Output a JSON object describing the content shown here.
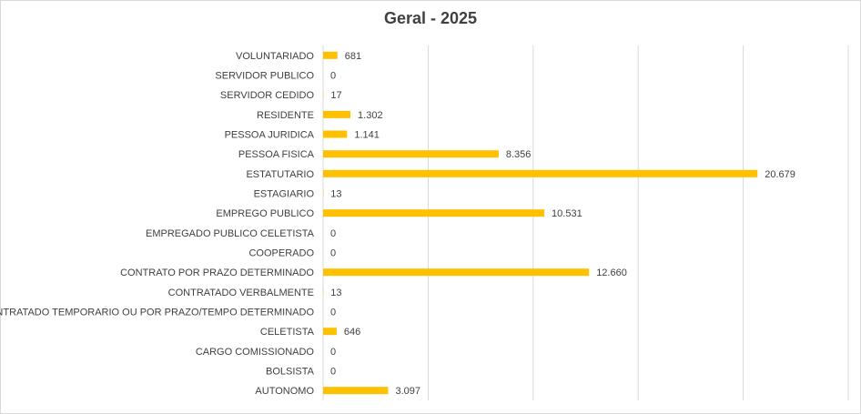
{
  "chart_data": {
    "type": "bar",
    "orientation": "horizontal",
    "title": "Geral - 2025",
    "xlabel": "",
    "ylabel": "",
    "xlim": [
      0,
      25000
    ],
    "grid": true,
    "legend": "none",
    "bar_color": "#FFC000",
    "categories": [
      "VOLUNTARIADO",
      "SERVIDOR PUBLICO",
      "SERVIDOR CEDIDO",
      "RESIDENTE",
      "PESSOA JURIDICA",
      "PESSOA FISICA",
      "ESTATUTARIO",
      "ESTAGIARIO",
      "EMPREGO PUBLICO",
      "EMPREGADO PUBLICO CELETISTA",
      "COOPERADO",
      "CONTRATO POR PRAZO DETERMINADO",
      "CONTRATADO VERBALMENTE",
      "CONTRATADO TEMPORARIO OU POR PRAZO/TEMPO DETERMINADO",
      "CELETISTA",
      "CARGO COMISSIONADO",
      "BOLSISTA",
      "AUTONOMO"
    ],
    "values": [
      681,
      0,
      17,
      1302,
      1141,
      8356,
      20679,
      13,
      10531,
      0,
      0,
      12660,
      13,
      0,
      646,
      0,
      0,
      3097
    ],
    "value_labels": [
      "681",
      "0",
      "17",
      "1.302",
      "1.141",
      "8.356",
      "20.679",
      "13",
      "10.531",
      "0",
      "0",
      "12.660",
      "13",
      "0",
      "646",
      "0",
      "0",
      "3.097"
    ]
  }
}
